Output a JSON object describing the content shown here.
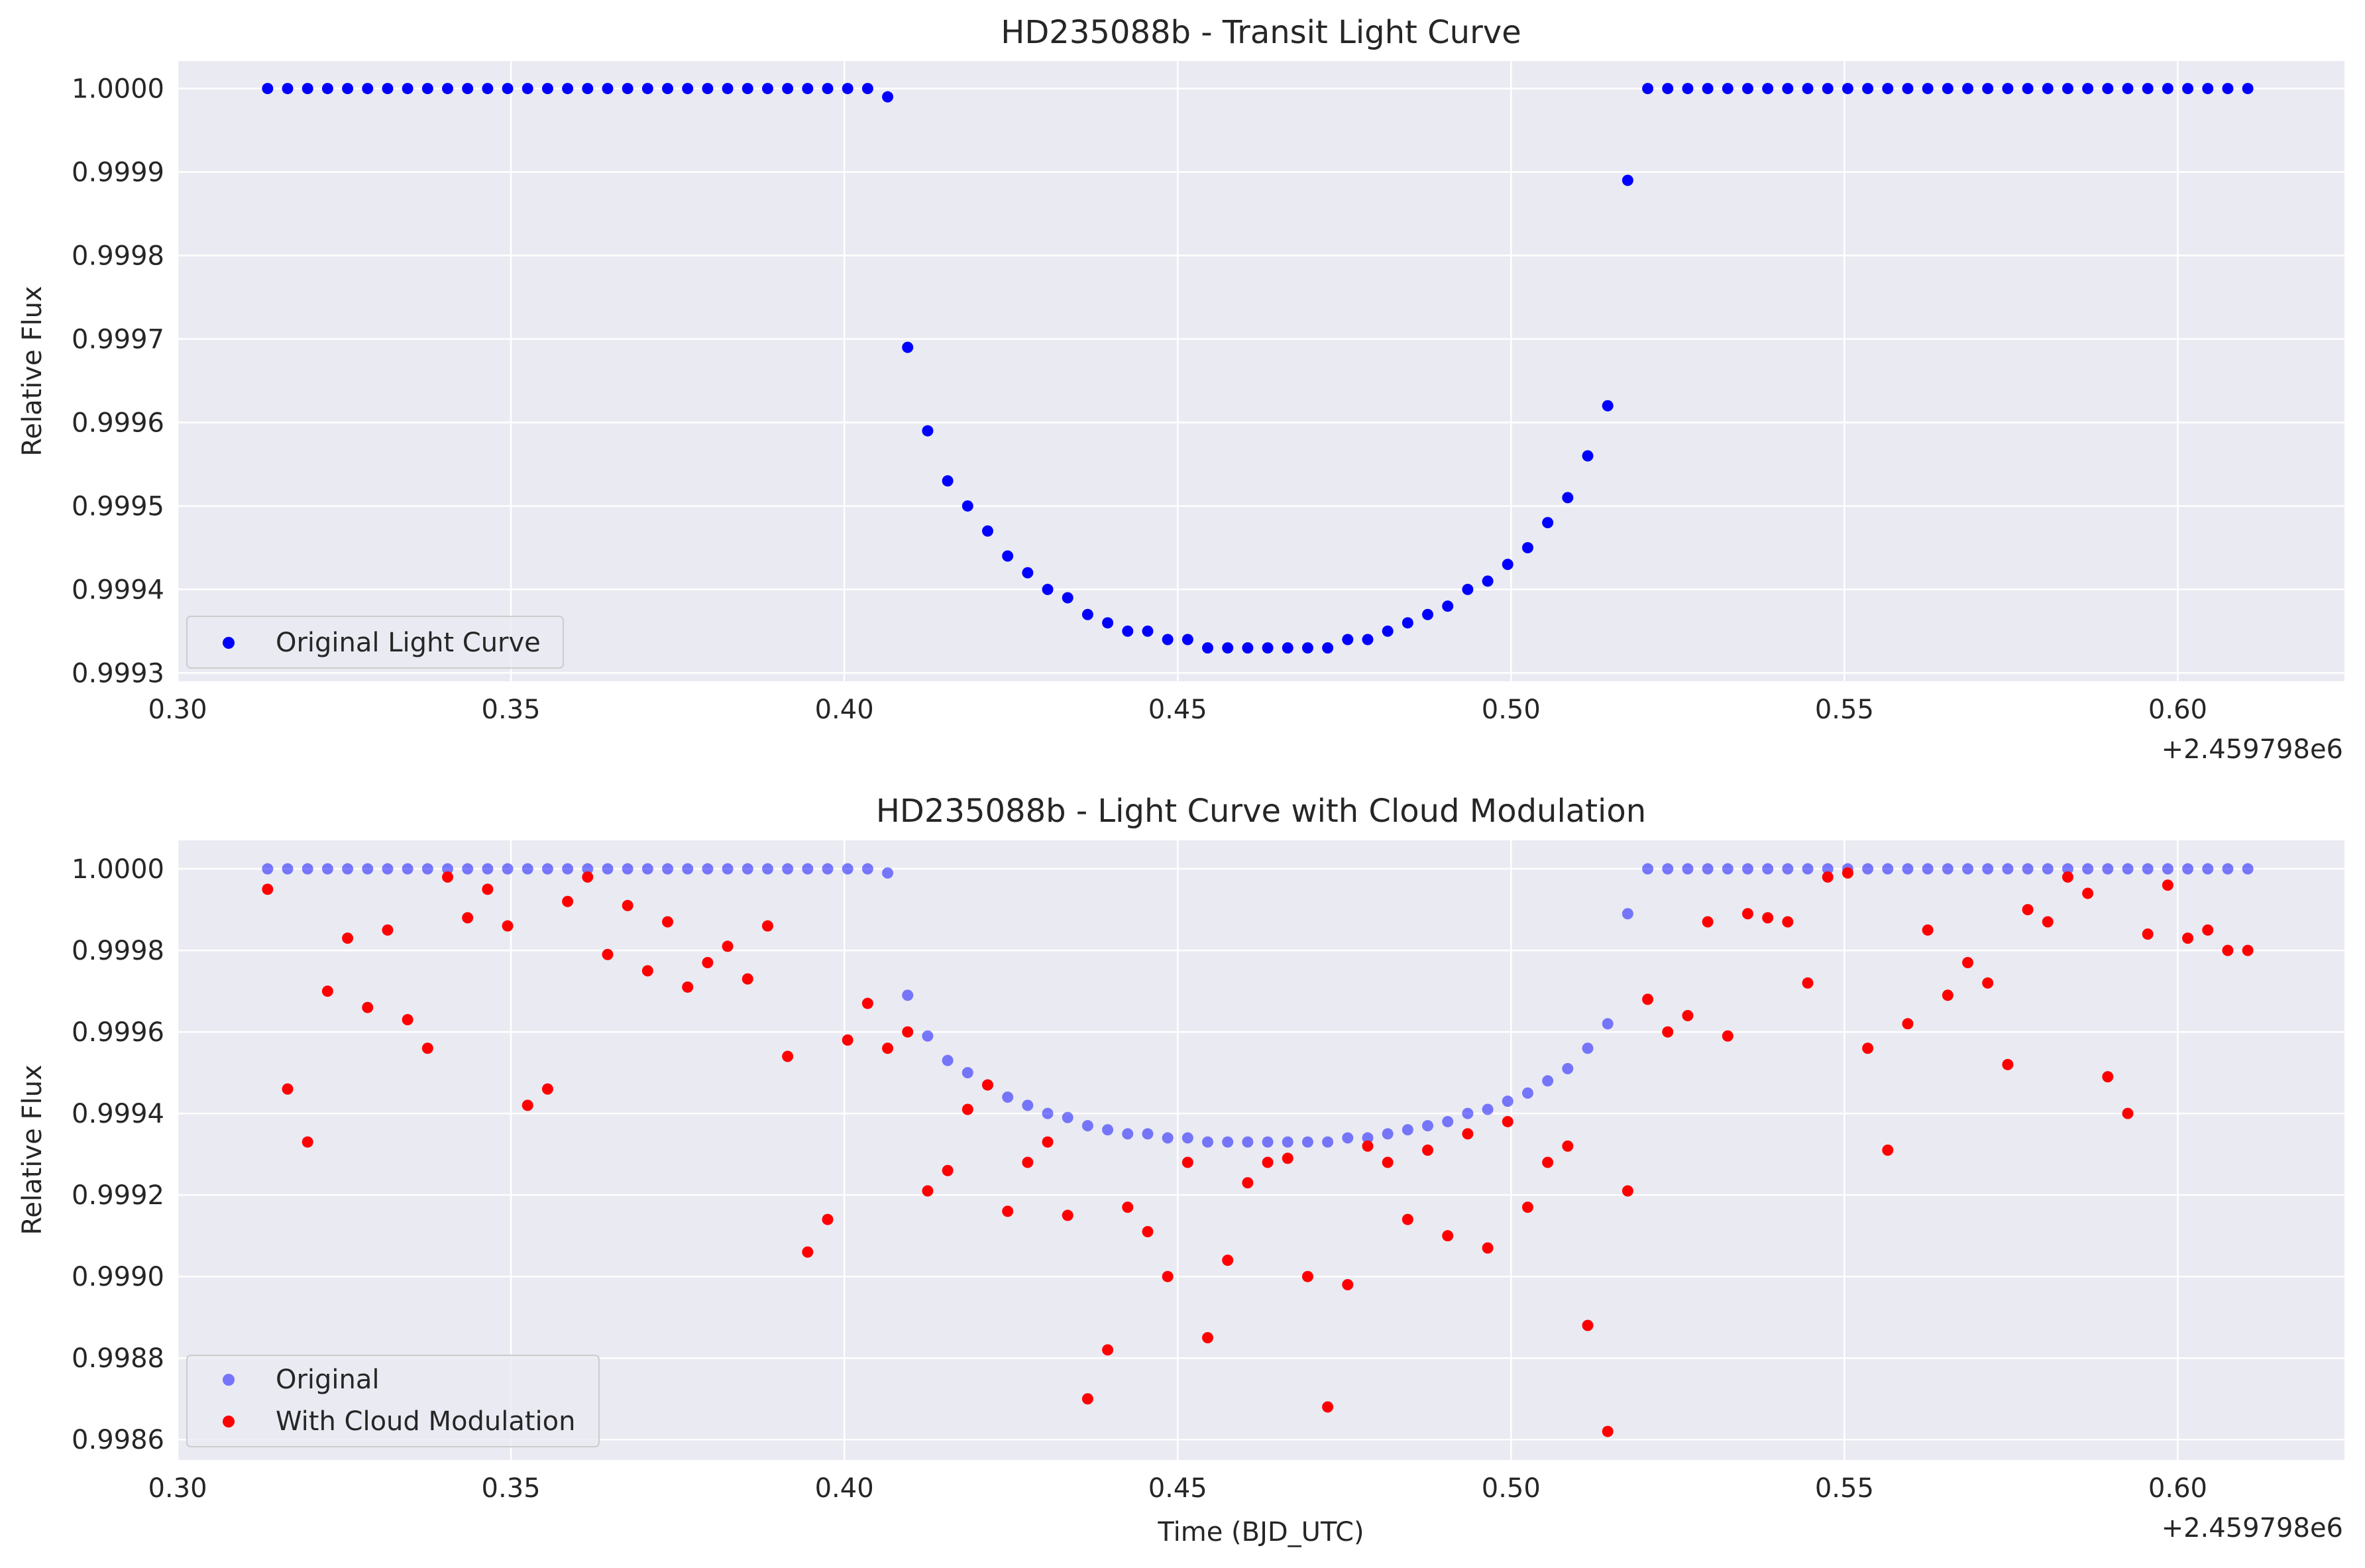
{
  "chart_data": [
    {
      "type": "scatter",
      "title": "HD235088b - Transit Light Curve",
      "xlabel": "",
      "ylabel": "Relative Flux",
      "x_offset_label": "+2.459798e6",
      "xlim": [
        0.3,
        0.625
      ],
      "ylim": [
        0.99929,
        1.000033
      ],
      "xticks": [
        0.3,
        0.35,
        0.4,
        0.45,
        0.5,
        0.55,
        0.6
      ],
      "xtick_labels": [
        "0.30",
        "0.35",
        "0.40",
        "0.45",
        "0.50",
        "0.55",
        "0.60"
      ],
      "yticks": [
        0.9993,
        0.9994,
        0.9995,
        0.9996,
        0.9997,
        0.9998,
        0.9999,
        1.0
      ],
      "ytick_labels": [
        "0.9993",
        "0.9994",
        "0.9995",
        "0.9996",
        "0.9997",
        "0.9998",
        "0.9999",
        "1.0000"
      ],
      "grid": true,
      "legend_position": "lower-left",
      "series": [
        {
          "name": "Original Light Curve",
          "color": "#0000ff",
          "opacity": 1.0,
          "x": [
            0.3135,
            0.3165,
            0.3195,
            0.3225,
            0.3255,
            0.3285,
            0.3315,
            0.3345,
            0.3375,
            0.3405,
            0.3435,
            0.3465,
            0.3495,
            0.3525,
            0.3555,
            0.3585,
            0.3615,
            0.3645,
            0.3675,
            0.3705,
            0.3735,
            0.3765,
            0.3795,
            0.3825,
            0.3855,
            0.3885,
            0.3915,
            0.3945,
            0.3975,
            0.4005,
            0.4035,
            0.4065,
            0.4095,
            0.4125,
            0.4155,
            0.4185,
            0.4215,
            0.4245,
            0.4275,
            0.4305,
            0.4335,
            0.4365,
            0.4395,
            0.4425,
            0.4455,
            0.4485,
            0.4515,
            0.4545,
            0.4575,
            0.4605,
            0.4635,
            0.4665,
            0.4695,
            0.4725,
            0.4755,
            0.4785,
            0.4815,
            0.4845,
            0.4875,
            0.4905,
            0.4935,
            0.4965,
            0.4995,
            0.5025,
            0.5055,
            0.5085,
            0.5115,
            0.5145,
            0.5175,
            0.5205,
            0.5235,
            0.5265,
            0.5295,
            0.5325,
            0.5355,
            0.5385,
            0.5415,
            0.5445,
            0.5475,
            0.5505,
            0.5535,
            0.5565,
            0.5595,
            0.5625,
            0.5655,
            0.5685,
            0.5715,
            0.5745,
            0.5775,
            0.5805,
            0.5835,
            0.5865,
            0.5895,
            0.5925,
            0.5955,
            0.5985,
            0.6015,
            0.6045,
            0.6075,
            0.6105
          ],
          "y": [
            1.0,
            1.0,
            1.0,
            1.0,
            1.0,
            1.0,
            1.0,
            1.0,
            1.0,
            1.0,
            1.0,
            1.0,
            1.0,
            1.0,
            1.0,
            1.0,
            1.0,
            1.0,
            1.0,
            1.0,
            1.0,
            1.0,
            1.0,
            1.0,
            1.0,
            1.0,
            1.0,
            1.0,
            1.0,
            1.0,
            1.0,
            0.99999,
            0.99969,
            0.99959,
            0.99953,
            0.9995,
            0.99947,
            0.99944,
            0.99942,
            0.9994,
            0.99939,
            0.99937,
            0.99936,
            0.99935,
            0.99935,
            0.99934,
            0.99934,
            0.99933,
            0.99933,
            0.99933,
            0.99933,
            0.99933,
            0.99933,
            0.99933,
            0.99934,
            0.99934,
            0.99935,
            0.99936,
            0.99937,
            0.99938,
            0.9994,
            0.99941,
            0.99943,
            0.99945,
            0.99948,
            0.99951,
            0.99956,
            0.99962,
            0.99989,
            1.0,
            1.0,
            1.0,
            1.0,
            1.0,
            1.0,
            1.0,
            1.0,
            1.0,
            1.0,
            1.0,
            1.0,
            1.0,
            1.0,
            1.0,
            1.0,
            1.0,
            1.0,
            1.0,
            1.0,
            1.0,
            1.0,
            1.0,
            1.0,
            1.0,
            1.0,
            1.0,
            1.0,
            1.0,
            1.0,
            1.0
          ]
        }
      ]
    },
    {
      "type": "scatter",
      "title": "HD235088b - Light Curve with Cloud Modulation",
      "xlabel": "Time (BJD_UTC)",
      "ylabel": "Relative Flux",
      "x_offset_label": "+2.459798e6",
      "xlim": [
        0.3,
        0.625
      ],
      "ylim": [
        0.99855,
        1.00007
      ],
      "xticks": [
        0.3,
        0.35,
        0.4,
        0.45,
        0.5,
        0.55,
        0.6
      ],
      "xtick_labels": [
        "0.30",
        "0.35",
        "0.40",
        "0.45",
        "0.50",
        "0.55",
        "0.60"
      ],
      "yticks": [
        0.9986,
        0.9988,
        0.999,
        0.9992,
        0.9994,
        0.9996,
        0.9998,
        1.0
      ],
      "ytick_labels": [
        "0.9986",
        "0.9988",
        "0.9990",
        "0.9992",
        "0.9994",
        "0.9996",
        "0.9998",
        "1.0000"
      ],
      "grid": true,
      "legend_position": "lower-left",
      "series": [
        {
          "name": "Original",
          "color": "#0000ff",
          "opacity": 0.5,
          "x": [
            0.3135,
            0.3165,
            0.3195,
            0.3225,
            0.3255,
            0.3285,
            0.3315,
            0.3345,
            0.3375,
            0.3405,
            0.3435,
            0.3465,
            0.3495,
            0.3525,
            0.3555,
            0.3585,
            0.3615,
            0.3645,
            0.3675,
            0.3705,
            0.3735,
            0.3765,
            0.3795,
            0.3825,
            0.3855,
            0.3885,
            0.3915,
            0.3945,
            0.3975,
            0.4005,
            0.4035,
            0.4065,
            0.4095,
            0.4125,
            0.4155,
            0.4185,
            0.4215,
            0.4245,
            0.4275,
            0.4305,
            0.4335,
            0.4365,
            0.4395,
            0.4425,
            0.4455,
            0.4485,
            0.4515,
            0.4545,
            0.4575,
            0.4605,
            0.4635,
            0.4665,
            0.4695,
            0.4725,
            0.4755,
            0.4785,
            0.4815,
            0.4845,
            0.4875,
            0.4905,
            0.4935,
            0.4965,
            0.4995,
            0.5025,
            0.5055,
            0.5085,
            0.5115,
            0.5145,
            0.5175,
            0.5205,
            0.5235,
            0.5265,
            0.5295,
            0.5325,
            0.5355,
            0.5385,
            0.5415,
            0.5445,
            0.5475,
            0.5505,
            0.5535,
            0.5565,
            0.5595,
            0.5625,
            0.5655,
            0.5685,
            0.5715,
            0.5745,
            0.5775,
            0.5805,
            0.5835,
            0.5865,
            0.5895,
            0.5925,
            0.5955,
            0.5985,
            0.6015,
            0.6045,
            0.6075,
            0.6105
          ],
          "y": [
            1.0,
            1.0,
            1.0,
            1.0,
            1.0,
            1.0,
            1.0,
            1.0,
            1.0,
            1.0,
            1.0,
            1.0,
            1.0,
            1.0,
            1.0,
            1.0,
            1.0,
            1.0,
            1.0,
            1.0,
            1.0,
            1.0,
            1.0,
            1.0,
            1.0,
            1.0,
            1.0,
            1.0,
            1.0,
            1.0,
            1.0,
            0.99999,
            0.99969,
            0.99959,
            0.99953,
            0.9995,
            0.99947,
            0.99944,
            0.99942,
            0.9994,
            0.99939,
            0.99937,
            0.99936,
            0.99935,
            0.99935,
            0.99934,
            0.99934,
            0.99933,
            0.99933,
            0.99933,
            0.99933,
            0.99933,
            0.99933,
            0.99933,
            0.99934,
            0.99934,
            0.99935,
            0.99936,
            0.99937,
            0.99938,
            0.9994,
            0.99941,
            0.99943,
            0.99945,
            0.99948,
            0.99951,
            0.99956,
            0.99962,
            0.99989,
            1.0,
            1.0,
            1.0,
            1.0,
            1.0,
            1.0,
            1.0,
            1.0,
            1.0,
            1.0,
            1.0,
            1.0,
            1.0,
            1.0,
            1.0,
            1.0,
            1.0,
            1.0,
            1.0,
            1.0,
            1.0,
            1.0,
            1.0,
            1.0,
            1.0,
            1.0,
            1.0,
            1.0,
            1.0,
            1.0,
            1.0
          ]
        },
        {
          "name": "With Cloud Modulation",
          "color": "#ff0000",
          "opacity": 1.0,
          "x": [
            0.3135,
            0.3165,
            0.3195,
            0.3225,
            0.3255,
            0.3285,
            0.3315,
            0.3345,
            0.3375,
            0.3405,
            0.3435,
            0.3465,
            0.3495,
            0.3525,
            0.3555,
            0.3585,
            0.3615,
            0.3645,
            0.3675,
            0.3705,
            0.3735,
            0.3765,
            0.3795,
            0.3825,
            0.3855,
            0.3885,
            0.3915,
            0.3945,
            0.3975,
            0.4005,
            0.4035,
            0.4065,
            0.4095,
            0.4125,
            0.4155,
            0.4185,
            0.4215,
            0.4245,
            0.4275,
            0.4305,
            0.4335,
            0.4365,
            0.4395,
            0.4425,
            0.4455,
            0.4485,
            0.4515,
            0.4545,
            0.4575,
            0.4605,
            0.4635,
            0.4665,
            0.4695,
            0.4725,
            0.4755,
            0.4785,
            0.4815,
            0.4845,
            0.4875,
            0.4905,
            0.4935,
            0.4965,
            0.4995,
            0.5025,
            0.5055,
            0.5085,
            0.5115,
            0.5145,
            0.5175,
            0.5205,
            0.5235,
            0.5265,
            0.5295,
            0.5325,
            0.5355,
            0.5385,
            0.5415,
            0.5445,
            0.5475,
            0.5505,
            0.5535,
            0.5565,
            0.5595,
            0.5625,
            0.5655,
            0.5685,
            0.5715,
            0.5745,
            0.5775,
            0.5805,
            0.5835,
            0.5865,
            0.5895,
            0.5925,
            0.5955,
            0.5985,
            0.6015,
            0.6045,
            0.6075,
            0.6105
          ],
          "y": [
            0.99995,
            0.99946,
            0.99933,
            0.9997,
            0.99983,
            0.99966,
            0.99985,
            0.99963,
            0.99956,
            0.99998,
            0.99988,
            0.99995,
            0.99986,
            0.99942,
            0.99946,
            0.99992,
            0.99998,
            0.99979,
            0.99991,
            0.99975,
            0.99987,
            0.99971,
            0.99977,
            0.99981,
            0.99973,
            0.99986,
            0.99954,
            0.99906,
            0.99914,
            0.99958,
            0.99967,
            0.99956,
            0.9996,
            0.99921,
            0.99926,
            0.99941,
            0.99947,
            0.99916,
            0.99928,
            0.99933,
            0.99915,
            0.9987,
            0.99882,
            0.99917,
            0.99911,
            0.999,
            0.99928,
            0.99885,
            0.99904,
            0.99923,
            0.99928,
            0.99929,
            0.999,
            0.99868,
            0.99898,
            0.99932,
            0.99928,
            0.99914,
            0.99931,
            0.9991,
            0.99935,
            0.99907,
            0.99938,
            0.99917,
            0.99928,
            0.99932,
            0.99888,
            0.99862,
            0.99921,
            0.99968,
            0.9996,
            0.99964,
            0.99987,
            0.99959,
            0.99989,
            0.99988,
            0.99987,
            0.99972,
            0.99998,
            0.99999,
            0.99956,
            0.99931,
            0.99962,
            0.99985,
            0.99969,
            0.99977,
            0.99972,
            0.99952,
            0.9999,
            0.99987,
            0.99998,
            0.99994,
            0.99949,
            0.9994,
            0.99984,
            0.99996,
            0.99983,
            0.99985,
            0.9998,
            0.9998
          ]
        }
      ]
    }
  ]
}
